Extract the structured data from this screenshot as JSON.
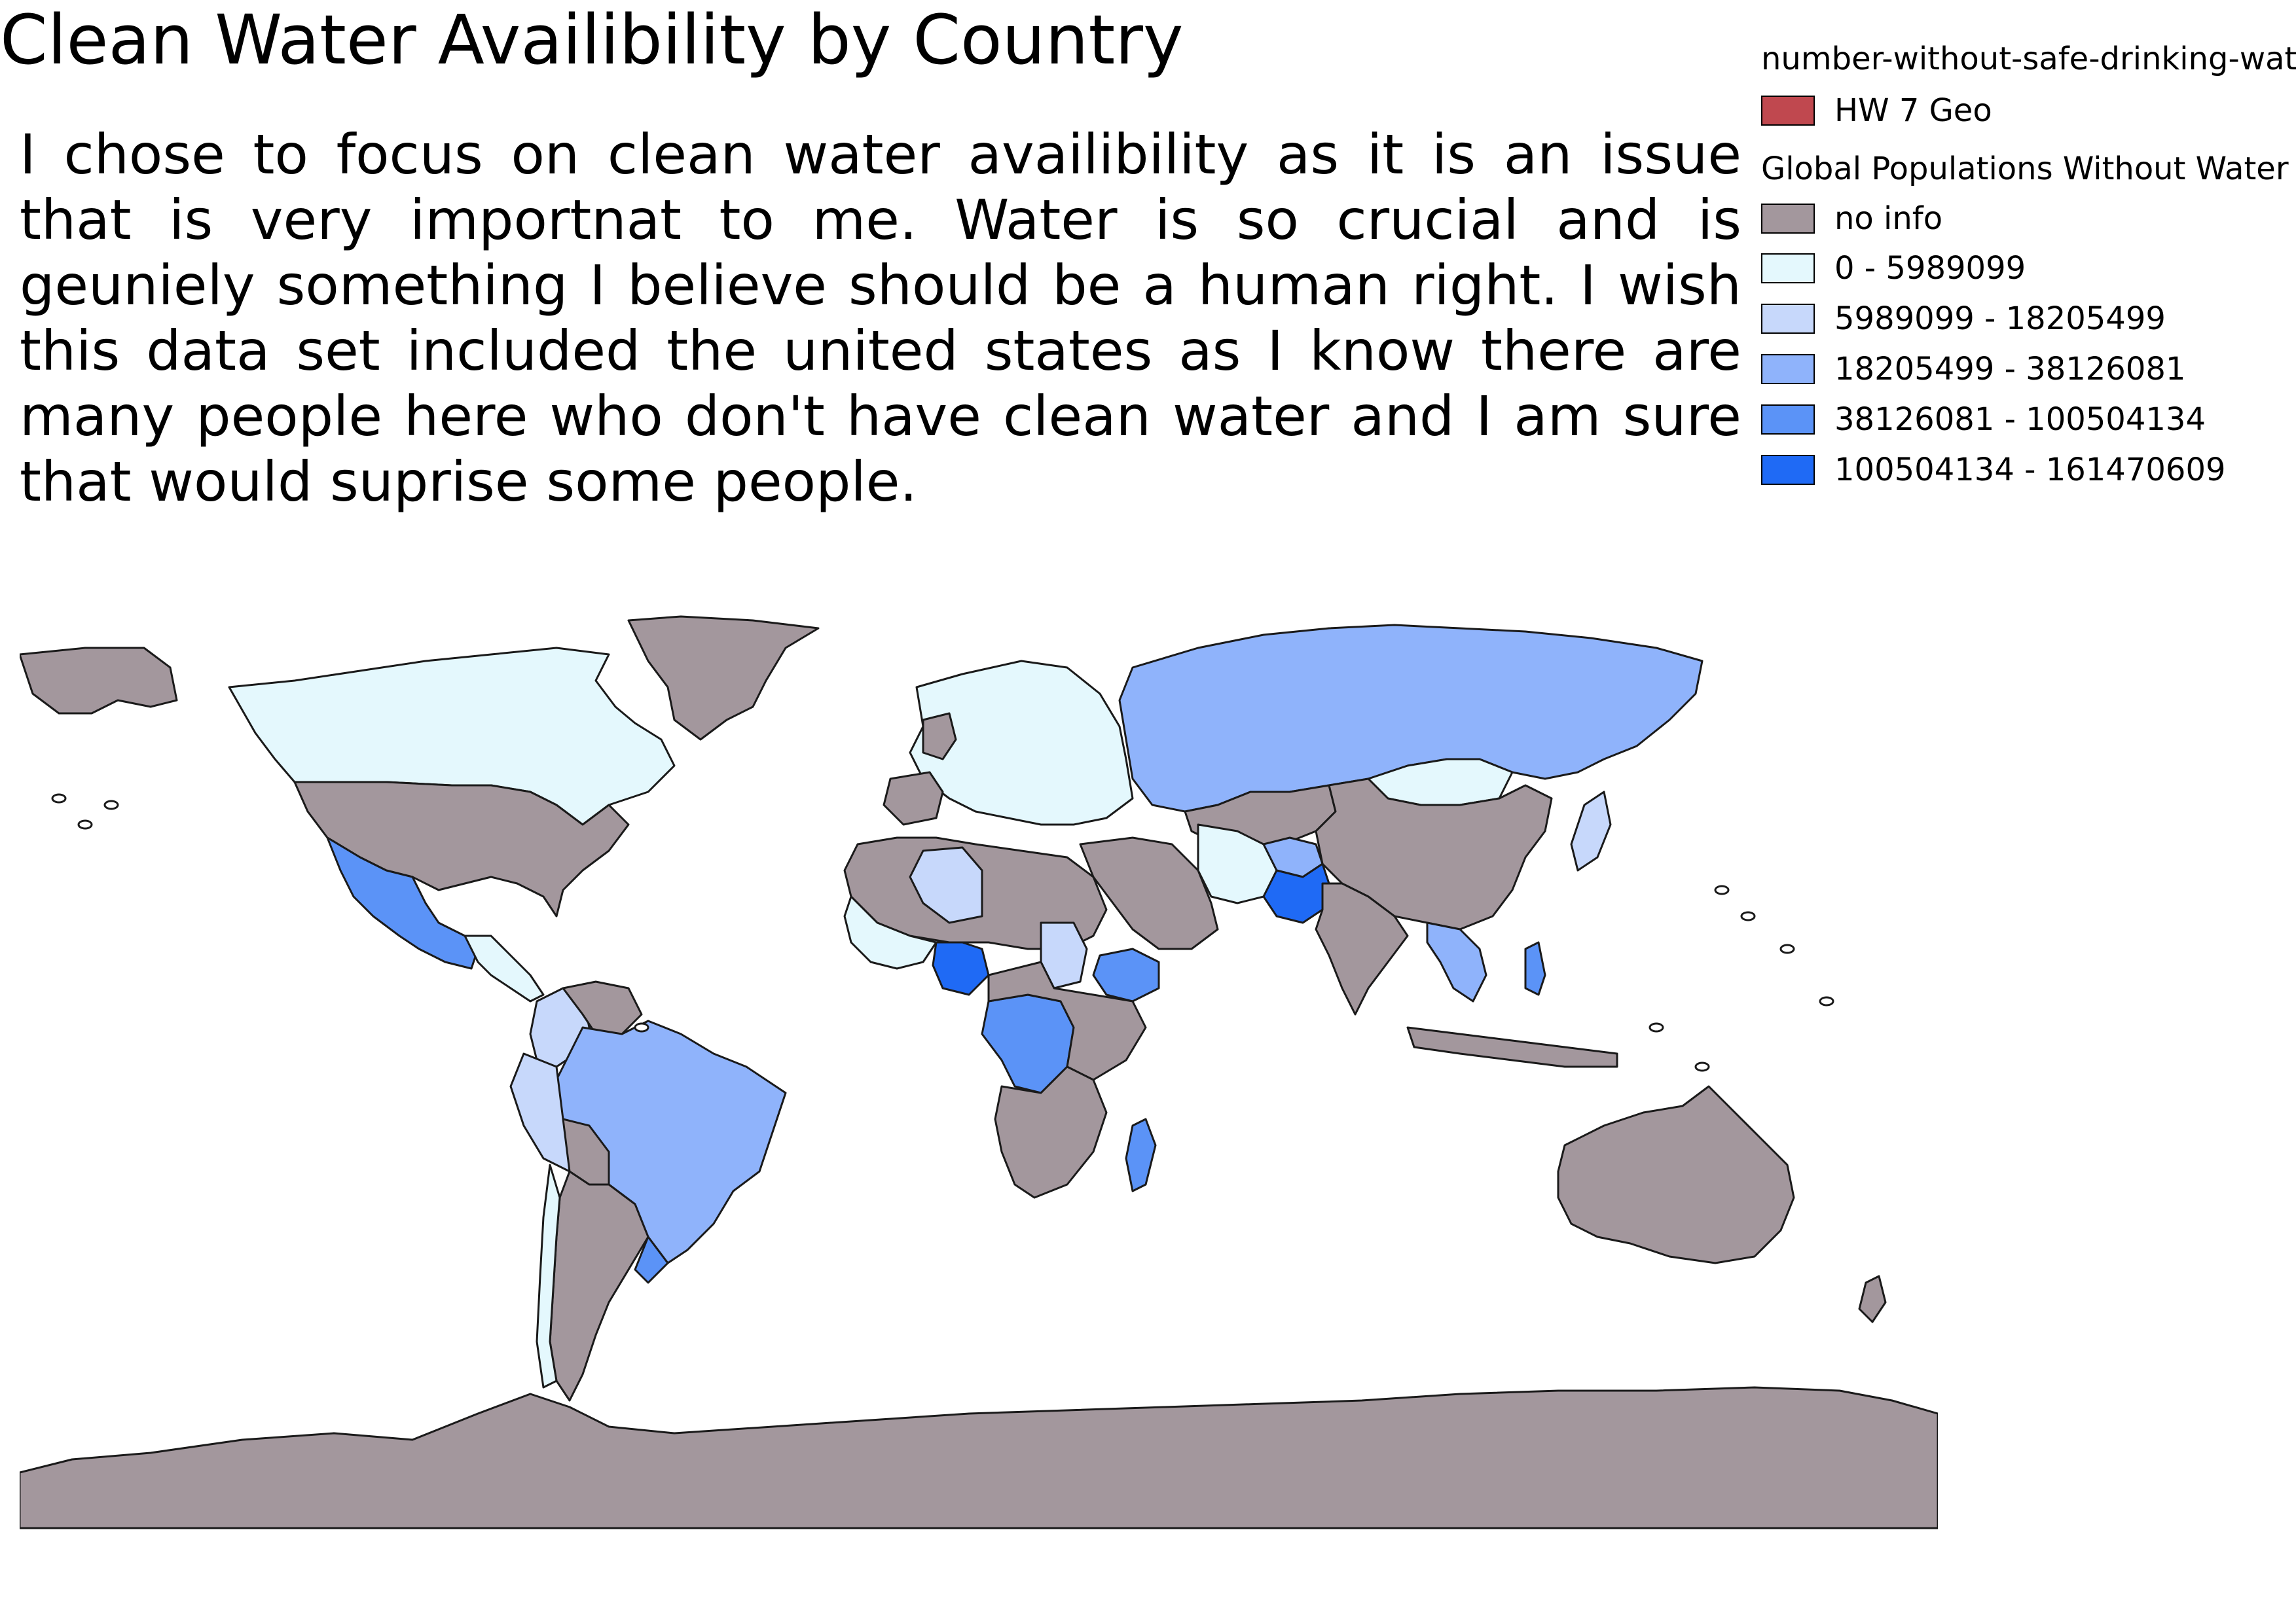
{
  "map_title": "Clean Water Availibility by Country",
  "description": "I chose to focus on clean water availibility as it is an issue that is very importnat to me. Water is so crucial and is geuniely something I believe should be a human right. I wish this data set included the united states as I know there are many people here who don't have clean water and I am sure that would suprise some people.",
  "legend": {
    "layer1_heading": "number-without-safe-drinking-water",
    "layer1_items": [
      {
        "label": "HW 7 Geo",
        "color": "#c0484f"
      }
    ],
    "layer2_heading": "Global Populations Without Water",
    "layer2_items": [
      {
        "label": "no info",
        "color": "#a3979d"
      },
      {
        "label": "0 - 5989099",
        "color": "#e4f8fd"
      },
      {
        "label": "5989099 - 18205499",
        "color": "#c7d8fb"
      },
      {
        "label": "18205499 - 38126081",
        "color": "#8fb3fb"
      },
      {
        "label": "38126081 - 100504134",
        "color": "#5b93f7"
      },
      {
        "label": "100504134 - 161470609",
        "color": "#1f6af5"
      }
    ]
  },
  "map": {
    "projection": "equirectangular (plate carrée)",
    "background_color": "#ffffff",
    "outline_color": "#1a1a1a",
    "regions": [
      {
        "name": "Greenland",
        "class": "no info"
      },
      {
        "name": "Canada",
        "class": "0 - 5989099"
      },
      {
        "name": "United States",
        "class": "no info"
      },
      {
        "name": "Mexico",
        "class": "38126081 - 100504134"
      },
      {
        "name": "Brazil",
        "class": "18205499 - 38126081"
      },
      {
        "name": "Argentina",
        "class": "no info"
      },
      {
        "name": "Russia",
        "class": "18205499 - 38126081"
      },
      {
        "name": "China",
        "class": "no info"
      },
      {
        "name": "Mongolia",
        "class": "0 - 5989099"
      },
      {
        "name": "India",
        "class": "no info"
      },
      {
        "name": "Pakistan",
        "class": "100504134 - 161470609"
      },
      {
        "name": "Afghanistan",
        "class": "18205499 - 38126081"
      },
      {
        "name": "Iran",
        "class": "0 - 5989099"
      },
      {
        "name": "Nigeria",
        "class": "100504134 - 161470609"
      },
      {
        "name": "Ethiopia",
        "class": "38126081 - 100504134"
      },
      {
        "name": "DR Congo",
        "class": "38126081 - 100504134"
      },
      {
        "name": "Algeria",
        "class": "5989099 - 18205499"
      },
      {
        "name": "Madagascar",
        "class": "38126081 - 100504134"
      },
      {
        "name": "Philippines",
        "class": "38126081 - 100504134"
      },
      {
        "name": "Australia",
        "class": "no info"
      },
      {
        "name": "Antarctica",
        "class": "no info"
      }
    ]
  }
}
